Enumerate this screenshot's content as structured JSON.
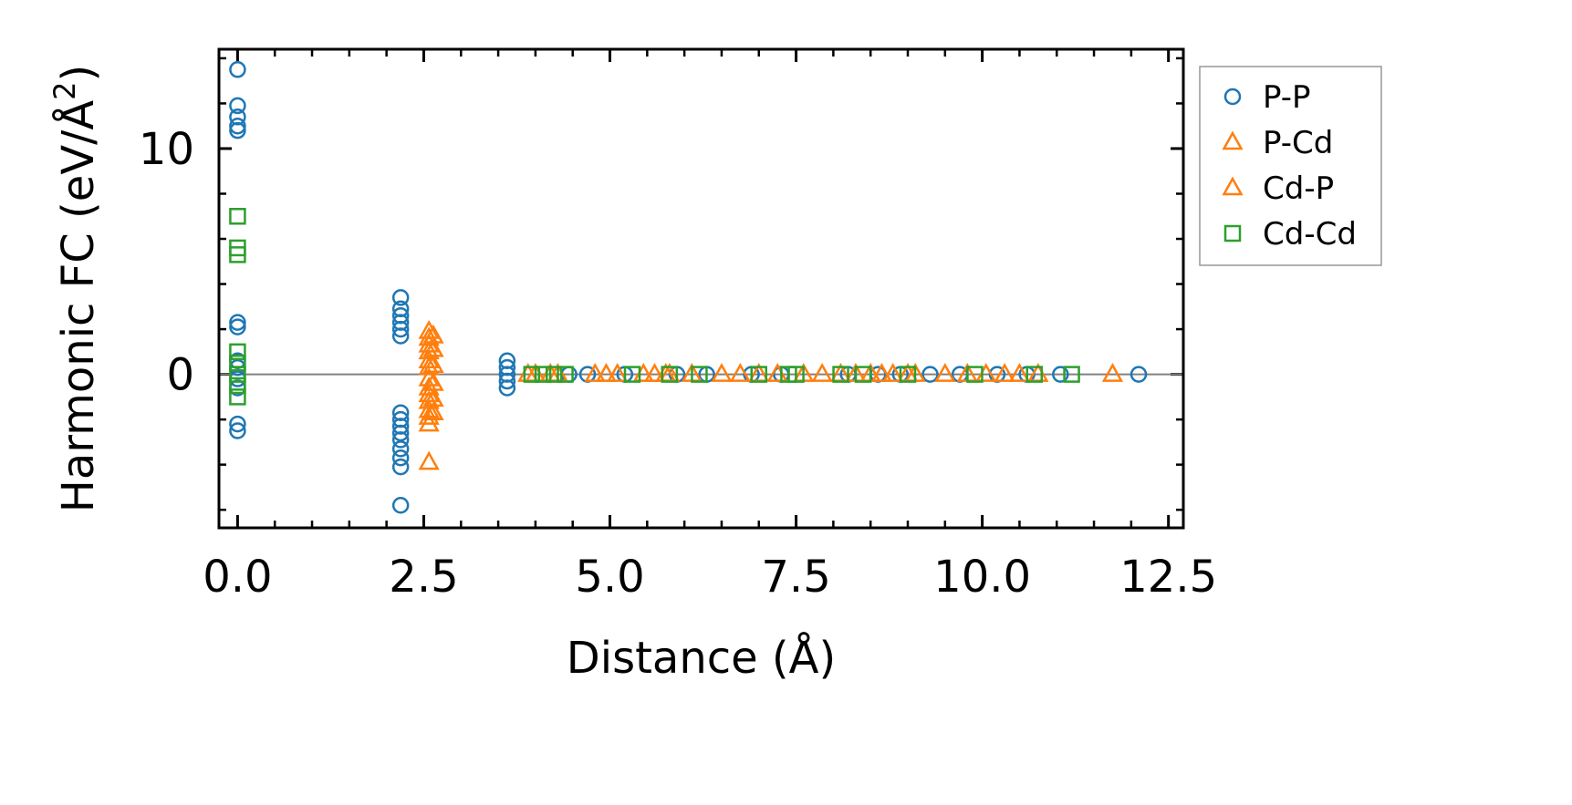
{
  "chart_data": {
    "type": "scatter",
    "title": "",
    "xlabel": "Distance (Å)",
    "ylabel": "Harmonic FC (eV/Å²)",
    "ylabel_parts": {
      "main": "Harmonic FC (eV/Å",
      "sup": "2",
      "tail": ")"
    },
    "xlim": [
      -0.25,
      12.7
    ],
    "ylim": [
      -6.8,
      14.4
    ],
    "xticks": [
      0.0,
      2.5,
      5.0,
      7.5,
      10.0,
      12.5
    ],
    "xtick_labels": [
      "0.0",
      "2.5",
      "5.0",
      "7.5",
      "10.0",
      "12.5"
    ],
    "yticks": [
      0,
      10
    ],
    "ytick_labels": [
      "0",
      "10"
    ],
    "reference_line_y": 0,
    "grid": false,
    "legend_position": "outside-right",
    "series": [
      {
        "name": "P-P",
        "marker": "circle",
        "color": "#1f77b4",
        "points": [
          [
            0,
            13.5
          ],
          [
            0,
            11.9
          ],
          [
            0,
            11.4
          ],
          [
            0,
            11.0
          ],
          [
            0,
            10.8
          ],
          [
            0,
            2.3
          ],
          [
            0,
            2.1
          ],
          [
            0,
            0.6
          ],
          [
            0,
            0.3
          ],
          [
            0,
            -0.2
          ],
          [
            0,
            -0.6
          ],
          [
            0,
            -2.2
          ],
          [
            0,
            -2.5
          ],
          [
            2.19,
            3.4
          ],
          [
            2.19,
            2.9
          ],
          [
            2.19,
            2.6
          ],
          [
            2.19,
            2.3
          ],
          [
            2.19,
            2.0
          ],
          [
            2.19,
            1.7
          ],
          [
            2.19,
            -1.7
          ],
          [
            2.19,
            -2.0
          ],
          [
            2.19,
            -2.3
          ],
          [
            2.19,
            -2.6
          ],
          [
            2.19,
            -2.9
          ],
          [
            2.19,
            -3.3
          ],
          [
            2.19,
            -3.7
          ],
          [
            2.19,
            -4.1
          ],
          [
            2.19,
            -5.8
          ],
          [
            3.62,
            0.6
          ],
          [
            3.62,
            0.3
          ],
          [
            3.62,
            0.0
          ],
          [
            3.62,
            -0.3
          ],
          [
            3.62,
            -0.6
          ],
          [
            4.45,
            0.0
          ],
          [
            4.7,
            0.0
          ],
          [
            5.2,
            0.0
          ],
          [
            5.9,
            0.0
          ],
          [
            6.3,
            0.0
          ],
          [
            6.9,
            0.0
          ],
          [
            7.3,
            0.0
          ],
          [
            8.2,
            0.0
          ],
          [
            8.6,
            0.0
          ],
          [
            8.9,
            0.0
          ],
          [
            9.3,
            0.0
          ],
          [
            9.7,
            0.0
          ],
          [
            10.2,
            0.0
          ],
          [
            10.6,
            0.0
          ],
          [
            11.05,
            0.0
          ],
          [
            12.1,
            0.0
          ]
        ]
      },
      {
        "name": "P-Cd",
        "marker": "triangle",
        "color": "#ff7f0e",
        "points": [
          [
            2.57,
            1.9
          ],
          [
            2.57,
            1.6
          ],
          [
            2.57,
            1.3
          ],
          [
            2.57,
            1.0
          ],
          [
            2.57,
            0.6
          ],
          [
            2.57,
            0.3
          ],
          [
            2.57,
            -0.2
          ],
          [
            2.57,
            -0.6
          ],
          [
            2.57,
            -0.9
          ],
          [
            2.57,
            -1.2
          ],
          [
            2.57,
            -1.6
          ],
          [
            2.57,
            -1.9
          ],
          [
            2.57,
            -2.2
          ],
          [
            2.57,
            -3.9
          ],
          [
            3.9,
            0.0
          ],
          [
            4.2,
            0.0
          ],
          [
            4.8,
            0.0
          ],
          [
            5.1,
            0.0
          ],
          [
            5.6,
            0.0
          ],
          [
            5.8,
            0.0
          ],
          [
            6.5,
            0.0
          ],
          [
            7.0,
            0.0
          ],
          [
            7.6,
            0.0
          ],
          [
            8.1,
            0.0
          ],
          [
            8.5,
            0.0
          ],
          [
            8.8,
            0.0
          ],
          [
            9.1,
            0.0
          ],
          [
            9.5,
            0.0
          ],
          [
            10.05,
            0.0
          ],
          [
            10.5,
            0.0
          ],
          [
            11.75,
            0.0
          ]
        ]
      },
      {
        "name": "Cd-P",
        "marker": "triangle",
        "color": "#ff7f0e",
        "points": [
          [
            2.63,
            1.7
          ],
          [
            2.63,
            1.1
          ],
          [
            2.63,
            0.4
          ],
          [
            2.63,
            -0.4
          ],
          [
            2.63,
            -1.1
          ],
          [
            2.63,
            -1.7
          ],
          [
            4.0,
            0.0
          ],
          [
            4.3,
            0.0
          ],
          [
            4.95,
            0.0
          ],
          [
            5.45,
            0.0
          ],
          [
            5.75,
            0.0
          ],
          [
            6.1,
            0.0
          ],
          [
            6.75,
            0.0
          ],
          [
            7.25,
            0.0
          ],
          [
            7.85,
            0.0
          ],
          [
            8.3,
            0.0
          ],
          [
            8.65,
            0.0
          ],
          [
            9.0,
            0.0
          ],
          [
            9.8,
            0.0
          ],
          [
            10.3,
            0.0
          ],
          [
            10.75,
            0.0
          ]
        ]
      },
      {
        "name": "Cd-Cd",
        "marker": "square",
        "color": "#2ca02c",
        "points": [
          [
            0,
            7.0
          ],
          [
            0,
            5.6
          ],
          [
            0,
            5.3
          ],
          [
            0,
            1.0
          ],
          [
            0,
            0.5
          ],
          [
            0,
            0.0
          ],
          [
            0,
            -0.5
          ],
          [
            0,
            -1.0
          ],
          [
            3.95,
            0.0
          ],
          [
            4.1,
            0.0
          ],
          [
            4.25,
            0.0
          ],
          [
            4.4,
            0.0
          ],
          [
            5.3,
            0.0
          ],
          [
            5.8,
            0.0
          ],
          [
            6.2,
            0.0
          ],
          [
            7.0,
            0.0
          ],
          [
            7.4,
            0.0
          ],
          [
            7.5,
            0.0
          ],
          [
            8.1,
            0.0
          ],
          [
            8.4,
            0.0
          ],
          [
            9.0,
            0.0
          ],
          [
            9.9,
            0.0
          ],
          [
            10.7,
            0.0
          ],
          [
            11.2,
            0.0
          ]
        ]
      }
    ]
  }
}
